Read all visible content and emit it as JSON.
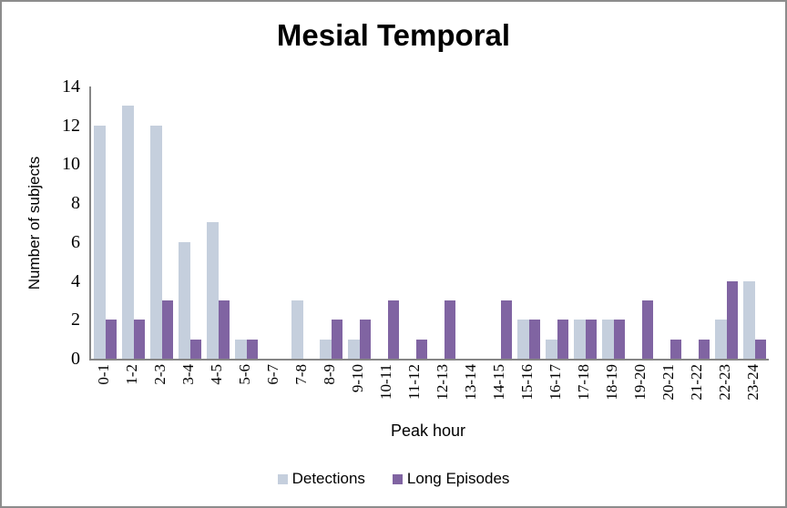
{
  "chart_data": {
    "type": "bar",
    "title": "Mesial Temporal",
    "xlabel": "Peak hour",
    "ylabel": "Number of subjects",
    "ylim": [
      0,
      14
    ],
    "yticks": [
      0,
      2,
      4,
      6,
      8,
      10,
      12,
      14
    ],
    "grid": false,
    "legend_position": "bottom",
    "categories": [
      "0-1",
      "1-2",
      "2-3",
      "3-4",
      "4-5",
      "5-6",
      "6-7",
      "7-8",
      "8-9",
      "9-10",
      "10-11",
      "11-12",
      "12-13",
      "13-14",
      "14-15",
      "15-16",
      "16-17",
      "17-18",
      "18-19",
      "19-20",
      "20-21",
      "21-22",
      "22-23",
      "23-24"
    ],
    "series": [
      {
        "name": "Detections",
        "color": "#C5CFDD",
        "values": [
          12,
          13,
          12,
          6,
          7,
          1,
          0,
          3,
          1,
          1,
          0,
          0,
          0,
          0,
          0,
          2,
          1,
          2,
          2,
          0,
          0,
          0,
          2,
          4
        ]
      },
      {
        "name": "Long Episodes",
        "color": "#8064A2",
        "values": [
          2,
          2,
          3,
          1,
          3,
          1,
          0,
          0,
          2,
          2,
          3,
          1,
          3,
          0,
          3,
          2,
          2,
          2,
          2,
          3,
          1,
          1,
          4,
          1
        ]
      }
    ]
  },
  "colors": {
    "axis": "#868686",
    "frame_border": "#8c8c8c",
    "text": "#000000",
    "background": "#ffffff"
  }
}
